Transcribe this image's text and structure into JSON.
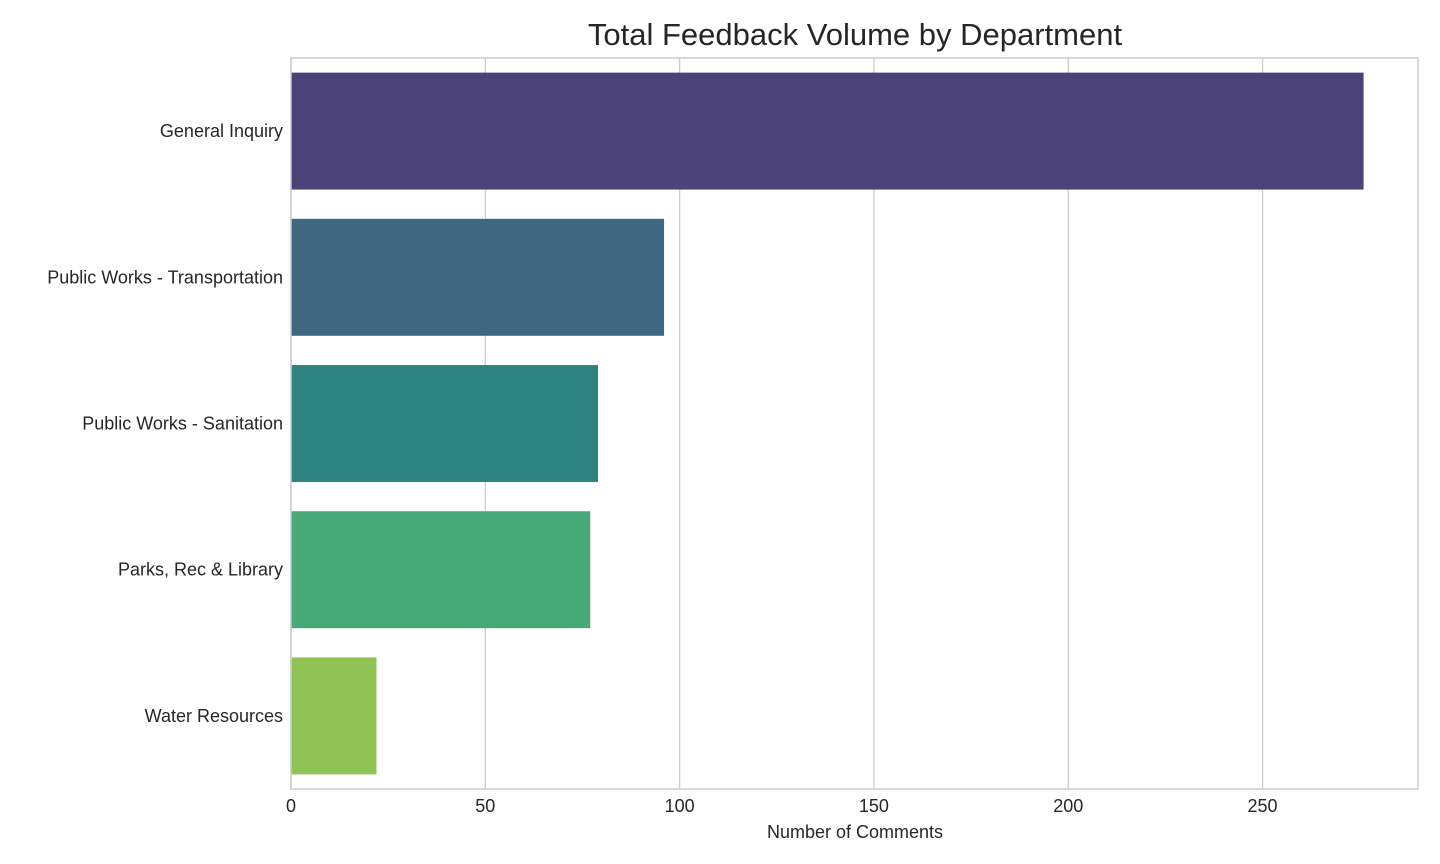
{
  "chart_data": {
    "type": "bar",
    "orientation": "horizontal",
    "title": "Total Feedback Volume by Department",
    "xlabel": "Number of Comments",
    "ylabel": "",
    "xlim": [
      0,
      290
    ],
    "x_ticks": [
      0,
      50,
      100,
      150,
      200,
      250
    ],
    "grid": "vertical",
    "categories": [
      "General Inquiry",
      "Public Works - Transportation",
      "Public Works - Sanitation",
      "Parks, Rec & Library",
      "Water Resources"
    ],
    "values": [
      276,
      96,
      79,
      77,
      22
    ],
    "colors": [
      "#4b4279",
      "#3e6782",
      "#2e8480",
      "#47a878",
      "#8fc455"
    ]
  }
}
